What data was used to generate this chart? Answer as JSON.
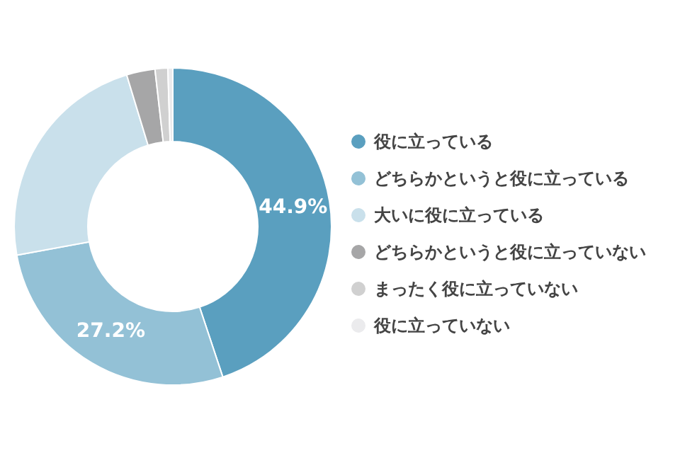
{
  "chart_data": {
    "type": "donut",
    "categories": [
      "役に立っている",
      "どちらかというと役に立っている",
      "大いに役に立っている",
      "どちらかというと役に立っていない",
      "まったく役に立っていない",
      "役に立っていない"
    ],
    "values": [
      44.9,
      27.2,
      23.2,
      2.9,
      1.3,
      0.5
    ],
    "colors": [
      "#5a9fbf",
      "#93c1d6",
      "#c9e0eb",
      "#a6a6a7",
      "#d0d0d0",
      "#ebebed"
    ],
    "value_labels": [
      "44.9%",
      "27.2%",
      null,
      null,
      null,
      null
    ],
    "legend": "right"
  }
}
